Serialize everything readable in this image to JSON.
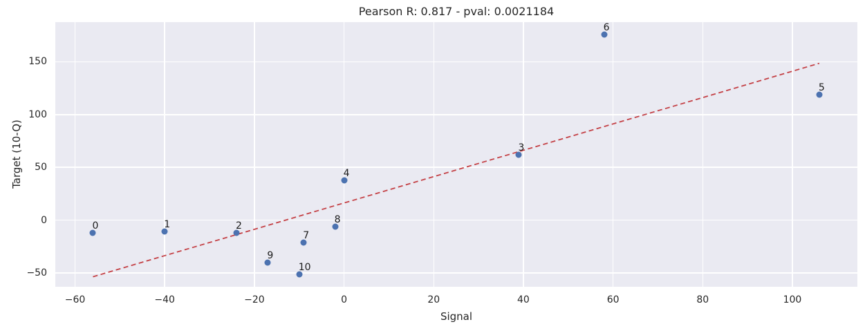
{
  "chart_data": {
    "type": "scatter",
    "title": "Pearson R: 0.817 - pval: 0.0021184",
    "xlabel": "Signal",
    "ylabel": "Target (10-Q)",
    "xlim": [
      -64.4,
      114.5
    ],
    "ylim": [
      -63,
      187.5
    ],
    "grid": true,
    "legend": "none",
    "stats": {
      "pearson_r": 0.817,
      "pval": 0.0021184
    },
    "x_ticks": [
      {
        "v": -60,
        "label": "−60"
      },
      {
        "v": -40,
        "label": "−40"
      },
      {
        "v": -20,
        "label": "−20"
      },
      {
        "v": 0,
        "label": "0"
      },
      {
        "v": 20,
        "label": "20"
      },
      {
        "v": 40,
        "label": "40"
      },
      {
        "v": 60,
        "label": "60"
      },
      {
        "v": 80,
        "label": "80"
      },
      {
        "v": 100,
        "label": "100"
      }
    ],
    "y_ticks": [
      {
        "v": -50,
        "label": "−50"
      },
      {
        "v": 0,
        "label": "0"
      },
      {
        "v": 50,
        "label": "50"
      },
      {
        "v": 100,
        "label": "100"
      },
      {
        "v": 150,
        "label": "150"
      }
    ],
    "points": [
      {
        "label": "0",
        "x": -56,
        "y": -12
      },
      {
        "label": "1",
        "x": -40,
        "y": -11
      },
      {
        "label": "2",
        "x": -24,
        "y": -12
      },
      {
        "label": "3",
        "x": 39,
        "y": 62
      },
      {
        "label": "4",
        "x": 0,
        "y": 38
      },
      {
        "label": "5",
        "x": 106,
        "y": 119
      },
      {
        "label": "6",
        "x": 58,
        "y": 176
      },
      {
        "label": "7",
        "x": -9,
        "y": -21
      },
      {
        "label": "8",
        "x": -2,
        "y": -6
      },
      {
        "label": "9",
        "x": -17,
        "y": -40
      },
      {
        "label": "10",
        "x": -10,
        "y": -51
      }
    ],
    "trendline": {
      "x1": -56,
      "y1": -53.5,
      "x2": 106,
      "y2": 148.5,
      "style": "dashed"
    },
    "colors": {
      "point": "#4c72b0",
      "trend": "#c44045",
      "plot_bg": "#eaeaf2",
      "grid": "#ffffff",
      "text": "#262626",
      "figure_bg": "#ffffff"
    }
  }
}
